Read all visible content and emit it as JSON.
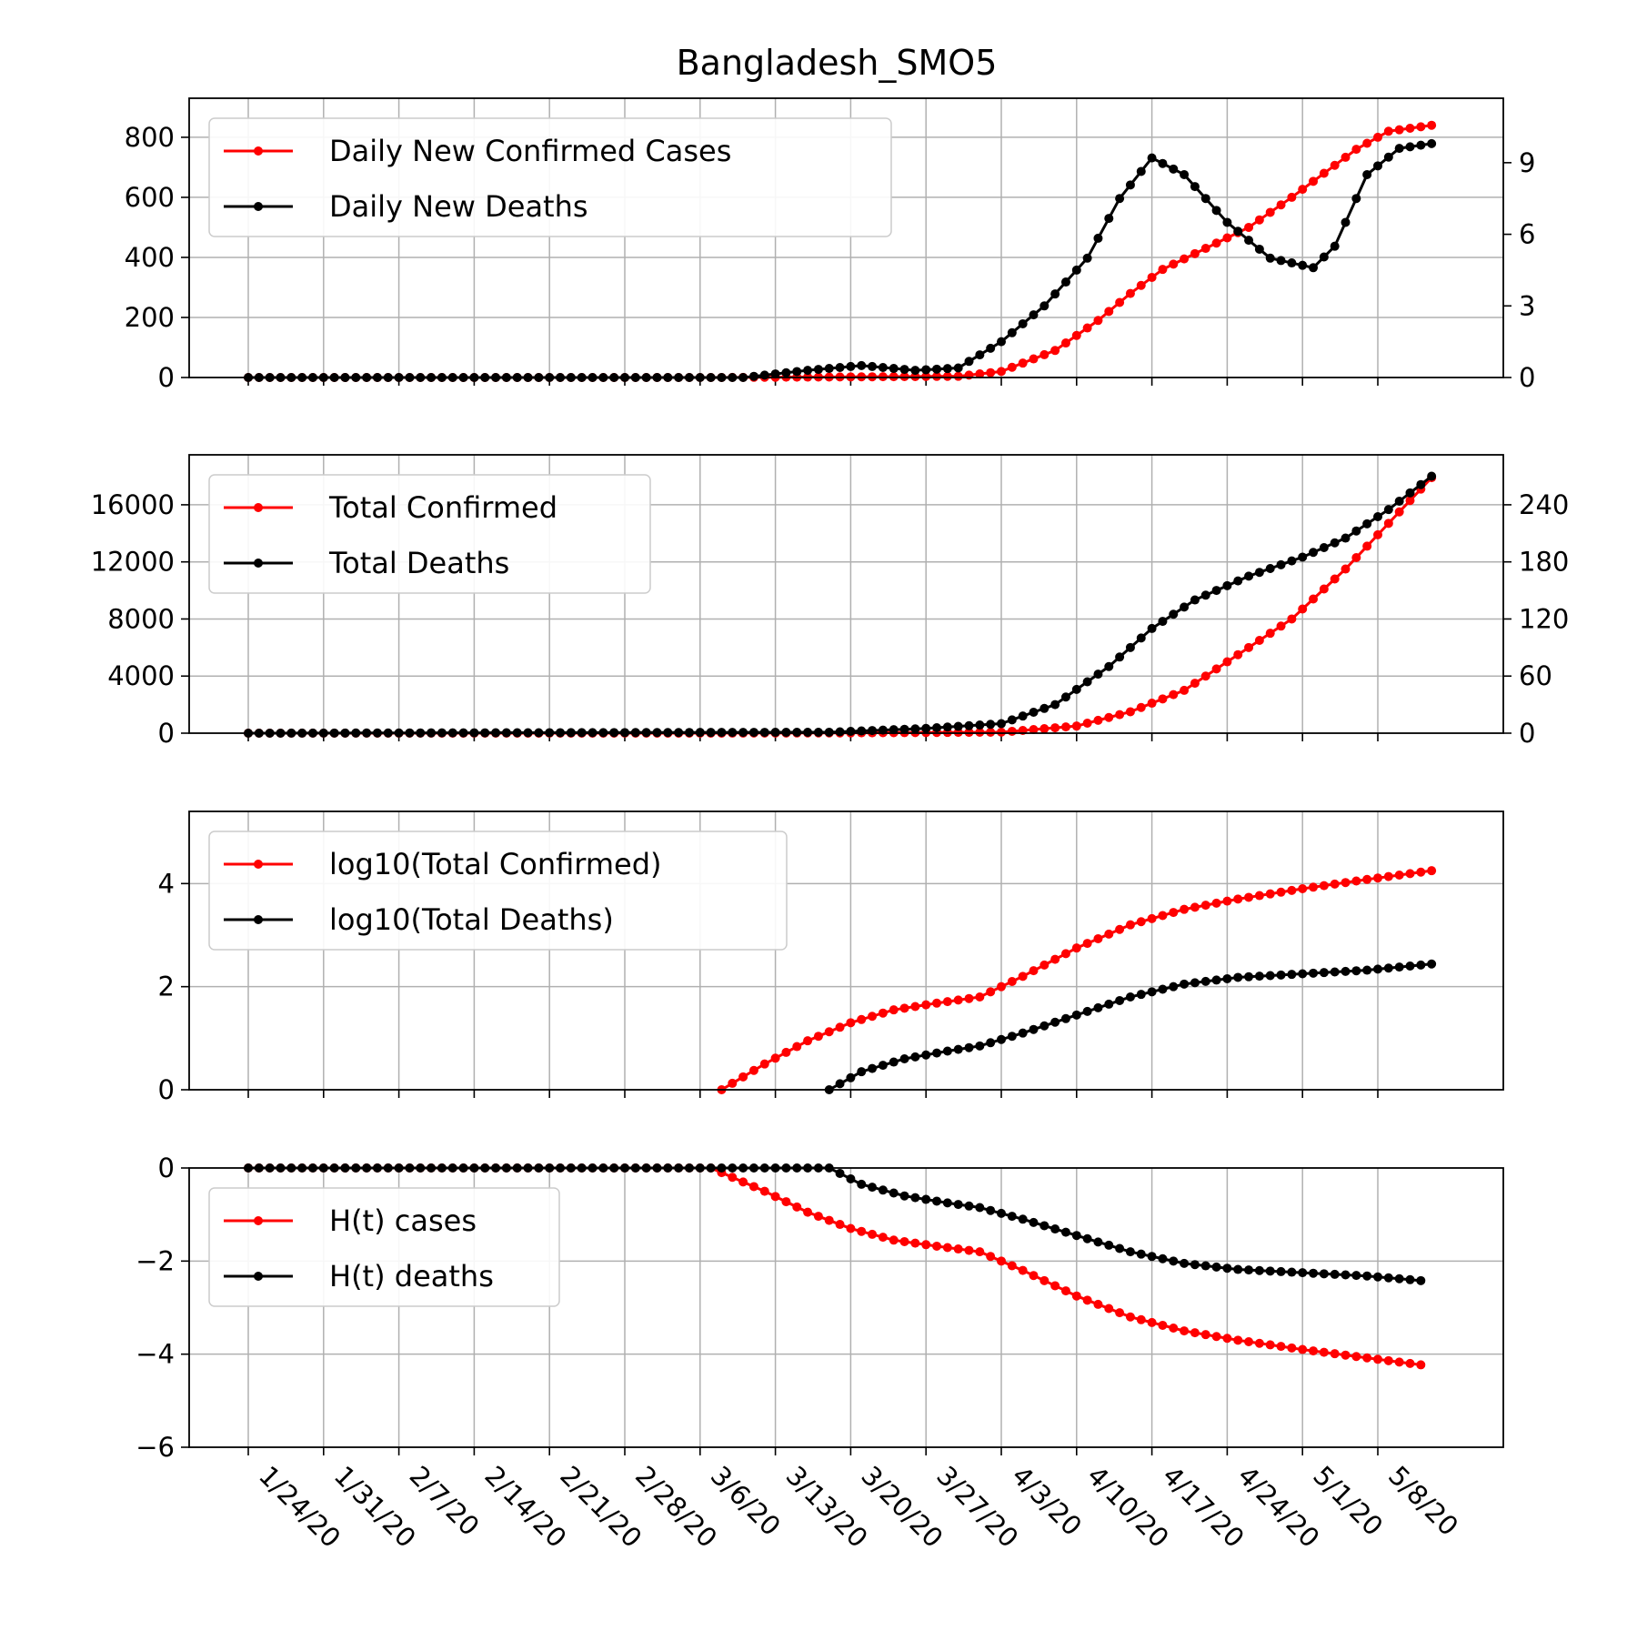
{
  "title": "Bangladesh_SMO5",
  "colors": {
    "cases": "#ff0000",
    "deaths": "#000000",
    "grid": "#b0b0b0"
  },
  "x_tick_labels": [
    "1/24/20",
    "1/31/20",
    "2/7/20",
    "2/14/20",
    "2/21/20",
    "2/28/20",
    "3/6/20",
    "3/13/20",
    "3/20/20",
    "3/27/20",
    "4/3/20",
    "4/10/20",
    "4/17/20",
    "4/24/20",
    "5/1/20",
    "5/8/20"
  ],
  "chart_data": [
    {
      "type": "line",
      "x": {
        "start": "1/24/20",
        "end": "5/13/20",
        "step_days": 1
      },
      "xlim": [
        "1/16/20",
        "5/21/20"
      ],
      "ylim": [
        0,
        930
      ],
      "y_ticks": [
        0,
        200,
        400,
        600,
        800
      ],
      "y2lim": [
        0,
        11.7
      ],
      "y2_ticks": [
        0,
        3,
        6,
        9
      ],
      "grid": true,
      "legend_placement": "upper left",
      "series": [
        {
          "name": "Daily New Confirmed Cases",
          "axis": "left",
          "color": "#ff0000",
          "values": [
            [
              "1/24/20",
              0
            ],
            [
              "3/7/20",
              0
            ],
            [
              "3/20/20",
              2
            ],
            [
              "3/30/20",
              4
            ],
            [
              "4/3/20",
              20
            ],
            [
              "4/8/20",
              90
            ],
            [
              "4/12/20",
              190
            ],
            [
              "4/15/20",
              280
            ],
            [
              "4/18/20",
              360
            ],
            [
              "4/22/20",
              430
            ],
            [
              "4/26/20",
              500
            ],
            [
              "4/30/20",
              600
            ],
            [
              "5/3/20",
              680
            ],
            [
              "5/6/20",
              760
            ],
            [
              "5/9/20",
              820
            ],
            [
              "5/13/20",
              840
            ]
          ]
        },
        {
          "name": "Daily New Deaths",
          "axis": "right",
          "color": "#000000",
          "values": [
            [
              "1/24/20",
              0
            ],
            [
              "3/10/20",
              0
            ],
            [
              "3/16/20",
              0.3
            ],
            [
              "3/21/20",
              0.5
            ],
            [
              "3/26/20",
              0.3
            ],
            [
              "3/30/20",
              0.4
            ],
            [
              "4/3/20",
              1.5
            ],
            [
              "4/7/20",
              3.0
            ],
            [
              "4/11/20",
              5.0
            ],
            [
              "4/14/20",
              7.5
            ],
            [
              "4/17/20",
              9.2
            ],
            [
              "4/20/20",
              8.5
            ],
            [
              "4/24/20",
              6.5
            ],
            [
              "4/28/20",
              5.0
            ],
            [
              "5/2/20",
              4.6
            ],
            [
              "5/4/20",
              5.5
            ],
            [
              "5/7/20",
              8.5
            ],
            [
              "5/10/20",
              9.6
            ],
            [
              "5/13/20",
              9.8
            ]
          ]
        }
      ]
    },
    {
      "type": "line",
      "x": {
        "start": "1/24/20",
        "end": "5/13/20",
        "step_days": 1
      },
      "xlim": [
        "1/16/20",
        "5/21/20"
      ],
      "ylim": [
        0,
        19500
      ],
      "y_ticks": [
        0,
        4000,
        8000,
        12000,
        16000
      ],
      "y2lim": [
        0,
        292.5
      ],
      "y2_ticks": [
        0,
        60,
        120,
        180,
        240
      ],
      "grid": true,
      "legend_placement": "upper left",
      "series": [
        {
          "name": "Total Confirmed",
          "axis": "left",
          "color": "#ff0000",
          "values": [
            [
              "1/24/20",
              0
            ],
            [
              "3/8/20",
              3
            ],
            [
              "3/20/20",
              20
            ],
            [
              "4/3/20",
              70
            ],
            [
              "4/10/20",
              500
            ],
            [
              "4/15/20",
              1500
            ],
            [
              "4/20/20",
              3000
            ],
            [
              "4/25/20",
              5500
            ],
            [
              "4/30/20",
              8000
            ],
            [
              "5/5/20",
              11500
            ],
            [
              "5/9/20",
              14700
            ],
            [
              "5/13/20",
              17900
            ]
          ]
        },
        {
          "name": "Total Deaths",
          "axis": "right",
          "color": "#000000",
          "values": [
            [
              "1/24/20",
              0
            ],
            [
              "3/18/20",
              1
            ],
            [
              "3/27/20",
              5
            ],
            [
              "4/3/20",
              10
            ],
            [
              "4/8/20",
              30
            ],
            [
              "4/13/20",
              70
            ],
            [
              "4/17/20",
              110
            ],
            [
              "4/21/20",
              140
            ],
            [
              "4/26/20",
              165
            ],
            [
              "5/1/20",
              185
            ],
            [
              "5/5/20",
              205
            ],
            [
              "5/9/20",
              235
            ],
            [
              "5/13/20",
              270
            ]
          ]
        }
      ]
    },
    {
      "type": "line",
      "x": {
        "start": "1/24/20",
        "end": "5/13/20",
        "step_days": 1
      },
      "xlim": [
        "1/16/20",
        "5/21/20"
      ],
      "ylim": [
        0,
        5.4
      ],
      "y_ticks": [
        0,
        2,
        4
      ],
      "grid": true,
      "legend_placement": "upper left",
      "series": [
        {
          "name": "log10(Total Confirmed)",
          "color": "#ff0000",
          "values": [
            [
              "3/8/20",
              0.0
            ],
            [
              "3/12/20",
              0.5
            ],
            [
              "3/16/20",
              0.95
            ],
            [
              "3/20/20",
              1.3
            ],
            [
              "3/24/20",
              1.55
            ],
            [
              "3/28/20",
              1.68
            ],
            [
              "4/1/20",
              1.8
            ],
            [
              "4/5/20",
              2.2
            ],
            [
              "4/10/20",
              2.75
            ],
            [
              "4/15/20",
              3.2
            ],
            [
              "4/20/20",
              3.5
            ],
            [
              "4/25/20",
              3.7
            ],
            [
              "5/1/20",
              3.9
            ],
            [
              "5/7/20",
              4.08
            ],
            [
              "5/13/20",
              4.25
            ]
          ]
        },
        {
          "name": "log10(Total Deaths)",
          "color": "#000000",
          "values": [
            [
              "3/18/20",
              0.0
            ],
            [
              "3/21/20",
              0.35
            ],
            [
              "3/25/20",
              0.6
            ],
            [
              "3/29/20",
              0.75
            ],
            [
              "4/1/20",
              0.85
            ],
            [
              "4/5/20",
              1.1
            ],
            [
              "4/10/20",
              1.45
            ],
            [
              "4/15/20",
              1.8
            ],
            [
              "4/20/20",
              2.05
            ],
            [
              "4/25/20",
              2.18
            ],
            [
              "5/1/20",
              2.25
            ],
            [
              "5/7/20",
              2.32
            ],
            [
              "5/13/20",
              2.44
            ]
          ]
        }
      ]
    },
    {
      "type": "line",
      "x": {
        "start": "1/24/20",
        "end": "5/12/20",
        "step_days": 1
      },
      "xlim": [
        "1/16/20",
        "5/21/20"
      ],
      "ylim": [
        -6,
        0
      ],
      "y_ticks": [
        -6,
        -4,
        -2,
        0
      ],
      "grid": true,
      "legend_placement": "upper left",
      "series": [
        {
          "name": "H(t) cases",
          "color": "#ff0000",
          "values": [
            [
              "1/24/20",
              0
            ],
            [
              "3/7/20",
              0
            ],
            [
              "3/12/20",
              -0.5
            ],
            [
              "3/16/20",
              -0.95
            ],
            [
              "3/20/20",
              -1.3
            ],
            [
              "3/24/20",
              -1.55
            ],
            [
              "3/28/20",
              -1.68
            ],
            [
              "4/1/20",
              -1.8
            ],
            [
              "4/5/20",
              -2.2
            ],
            [
              "4/10/20",
              -2.75
            ],
            [
              "4/15/20",
              -3.2
            ],
            [
              "4/20/20",
              -3.5
            ],
            [
              "4/25/20",
              -3.7
            ],
            [
              "5/1/20",
              -3.9
            ],
            [
              "5/7/20",
              -4.08
            ],
            [
              "5/12/20",
              -4.23
            ]
          ]
        },
        {
          "name": "H(t) deaths",
          "color": "#000000",
          "values": [
            [
              "1/24/20",
              0
            ],
            [
              "3/14/20",
              0
            ],
            [
              "3/18/20",
              0.0
            ],
            [
              "3/21/20",
              -0.35
            ],
            [
              "3/25/20",
              -0.6
            ],
            [
              "3/29/20",
              -0.75
            ],
            [
              "4/1/20",
              -0.85
            ],
            [
              "4/5/20",
              -1.1
            ],
            [
              "4/10/20",
              -1.45
            ],
            [
              "4/15/20",
              -1.8
            ],
            [
              "4/20/20",
              -2.05
            ],
            [
              "4/25/20",
              -2.18
            ],
            [
              "5/1/20",
              -2.25
            ],
            [
              "5/7/20",
              -2.32
            ],
            [
              "5/12/20",
              -2.42
            ]
          ]
        }
      ]
    }
  ]
}
